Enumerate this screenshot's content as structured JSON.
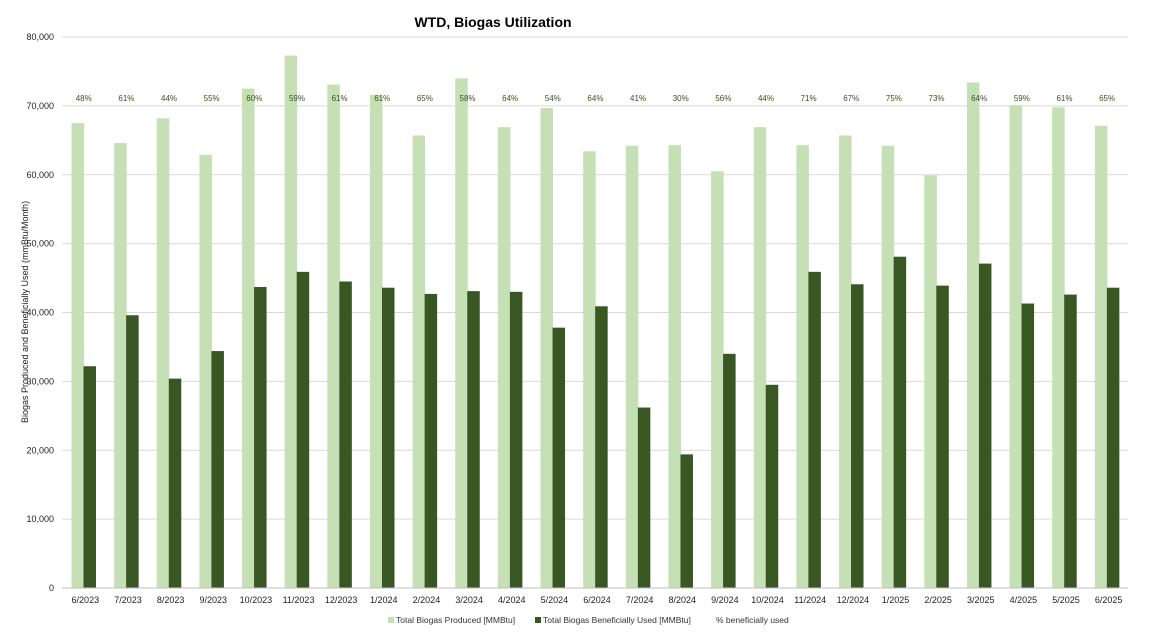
{
  "chart_data": {
    "type": "bar",
    "title": "WTD, Biogas Utilization",
    "ylabel": "Biogas Produced and Beneficially Used (mmBtu/Month)",
    "xlabel": "",
    "ylim": [
      0,
      80000
    ],
    "yticks": [
      "0",
      "10,000",
      "20,000",
      "30,000",
      "40,000",
      "50,000",
      "60,000",
      "70,000",
      "80,000"
    ],
    "ytick_values": [
      0,
      10000,
      20000,
      30000,
      40000,
      50000,
      60000,
      70000,
      80000
    ],
    "grid": true,
    "legend_position": "bottom",
    "categories": [
      "6/2023",
      "7/2023",
      "8/2023",
      "9/2023",
      "10/2023",
      "11/2023",
      "12/2023",
      "1/2024",
      "2/2024",
      "3/2024",
      "4/2024",
      "5/2024",
      "6/2024",
      "7/2024",
      "8/2024",
      "9/2024",
      "10/2024",
      "11/2024",
      "12/2024",
      "1/2025",
      "2/2025",
      "3/2025",
      "4/2025",
      "5/2025",
      "6/2025"
    ],
    "series": [
      {
        "name": "Total Biogas Produced [MMBtu]",
        "color": "#c5e0b4",
        "values": [
          67500,
          64600,
          68200,
          62900,
          72500,
          77300,
          73100,
          71600,
          65700,
          74000,
          66900,
          69700,
          63400,
          64200,
          64300,
          60500,
          66900,
          64300,
          65700,
          64200,
          59900,
          73400,
          70100,
          69800,
          67100
        ]
      },
      {
        "name": "Total Biogas Beneficially Used [MMBtu]",
        "color": "#385723",
        "values": [
          32200,
          39600,
          30400,
          34400,
          43700,
          45900,
          44500,
          43600,
          42700,
          43100,
          43000,
          37800,
          40900,
          26200,
          19400,
          34000,
          29500,
          45900,
          44100,
          48100,
          43900,
          47100,
          41300,
          42600,
          43600
        ]
      }
    ],
    "percent_series": {
      "name": "% beneficially used",
      "color": "#3a4f1d",
      "labels": [
        "48%",
        "61%",
        "44%",
        "55%",
        "60%",
        "59%",
        "61%",
        "61%",
        "65%",
        "58%",
        "64%",
        "54%",
        "64%",
        "41%",
        "30%",
        "56%",
        "44%",
        "71%",
        "67%",
        "75%",
        "73%",
        "64%",
        "59%",
        "61%",
        "65%"
      ]
    }
  }
}
